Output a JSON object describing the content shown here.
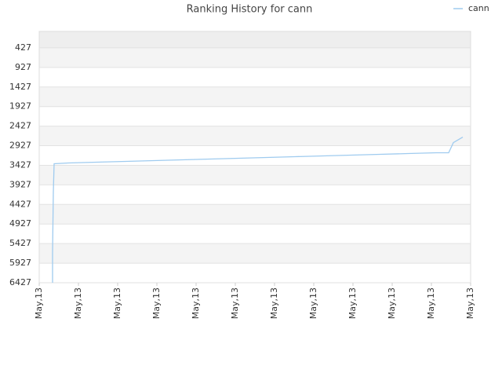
{
  "chart_data": {
    "type": "line",
    "title": "Ranking History for cann",
    "x": [
      0.34,
      0.34,
      0.36,
      0.38,
      0.74,
      1.46,
      2.2,
      2.92,
      3.64,
      4.36,
      5.08,
      5.8,
      6.52,
      7.24,
      7.96,
      8.68,
      9.4,
      10.12,
      10.44,
      10.56,
      10.8
    ],
    "series": [
      {
        "name": "cann",
        "color": "#9fcbef",
        "values": [
          6427,
          5667,
          4107,
          3387,
          3367,
          3347,
          3327,
          3307,
          3287,
          3267,
          3247,
          3227,
          3207,
          3187,
          3167,
          3147,
          3127,
          3107,
          3107,
          2847,
          2707
        ]
      }
    ],
    "xlim": [
      0,
      11
    ],
    "xticks": [
      {
        "value": 0,
        "label": "May,13"
      },
      {
        "value": 1,
        "label": "May,13"
      },
      {
        "value": 2,
        "label": "May,13"
      },
      {
        "value": 3,
        "label": "May,13"
      },
      {
        "value": 4,
        "label": "May,13"
      },
      {
        "value": 5,
        "label": "May,13"
      },
      {
        "value": 6,
        "label": "May,13"
      },
      {
        "value": 7,
        "label": "May,13"
      },
      {
        "value": 8,
        "label": "May,13"
      },
      {
        "value": 9,
        "label": "May,13"
      },
      {
        "value": 10,
        "label": "May,13"
      },
      {
        "value": 11,
        "label": "May,13"
      }
    ],
    "ylim": [
      6427,
      7
    ],
    "yticks": [
      427,
      927,
      1427,
      1927,
      2427,
      2927,
      3427,
      3927,
      4427,
      4927,
      5427,
      5927,
      6427
    ],
    "grid": true,
    "legend": "top-right"
  }
}
